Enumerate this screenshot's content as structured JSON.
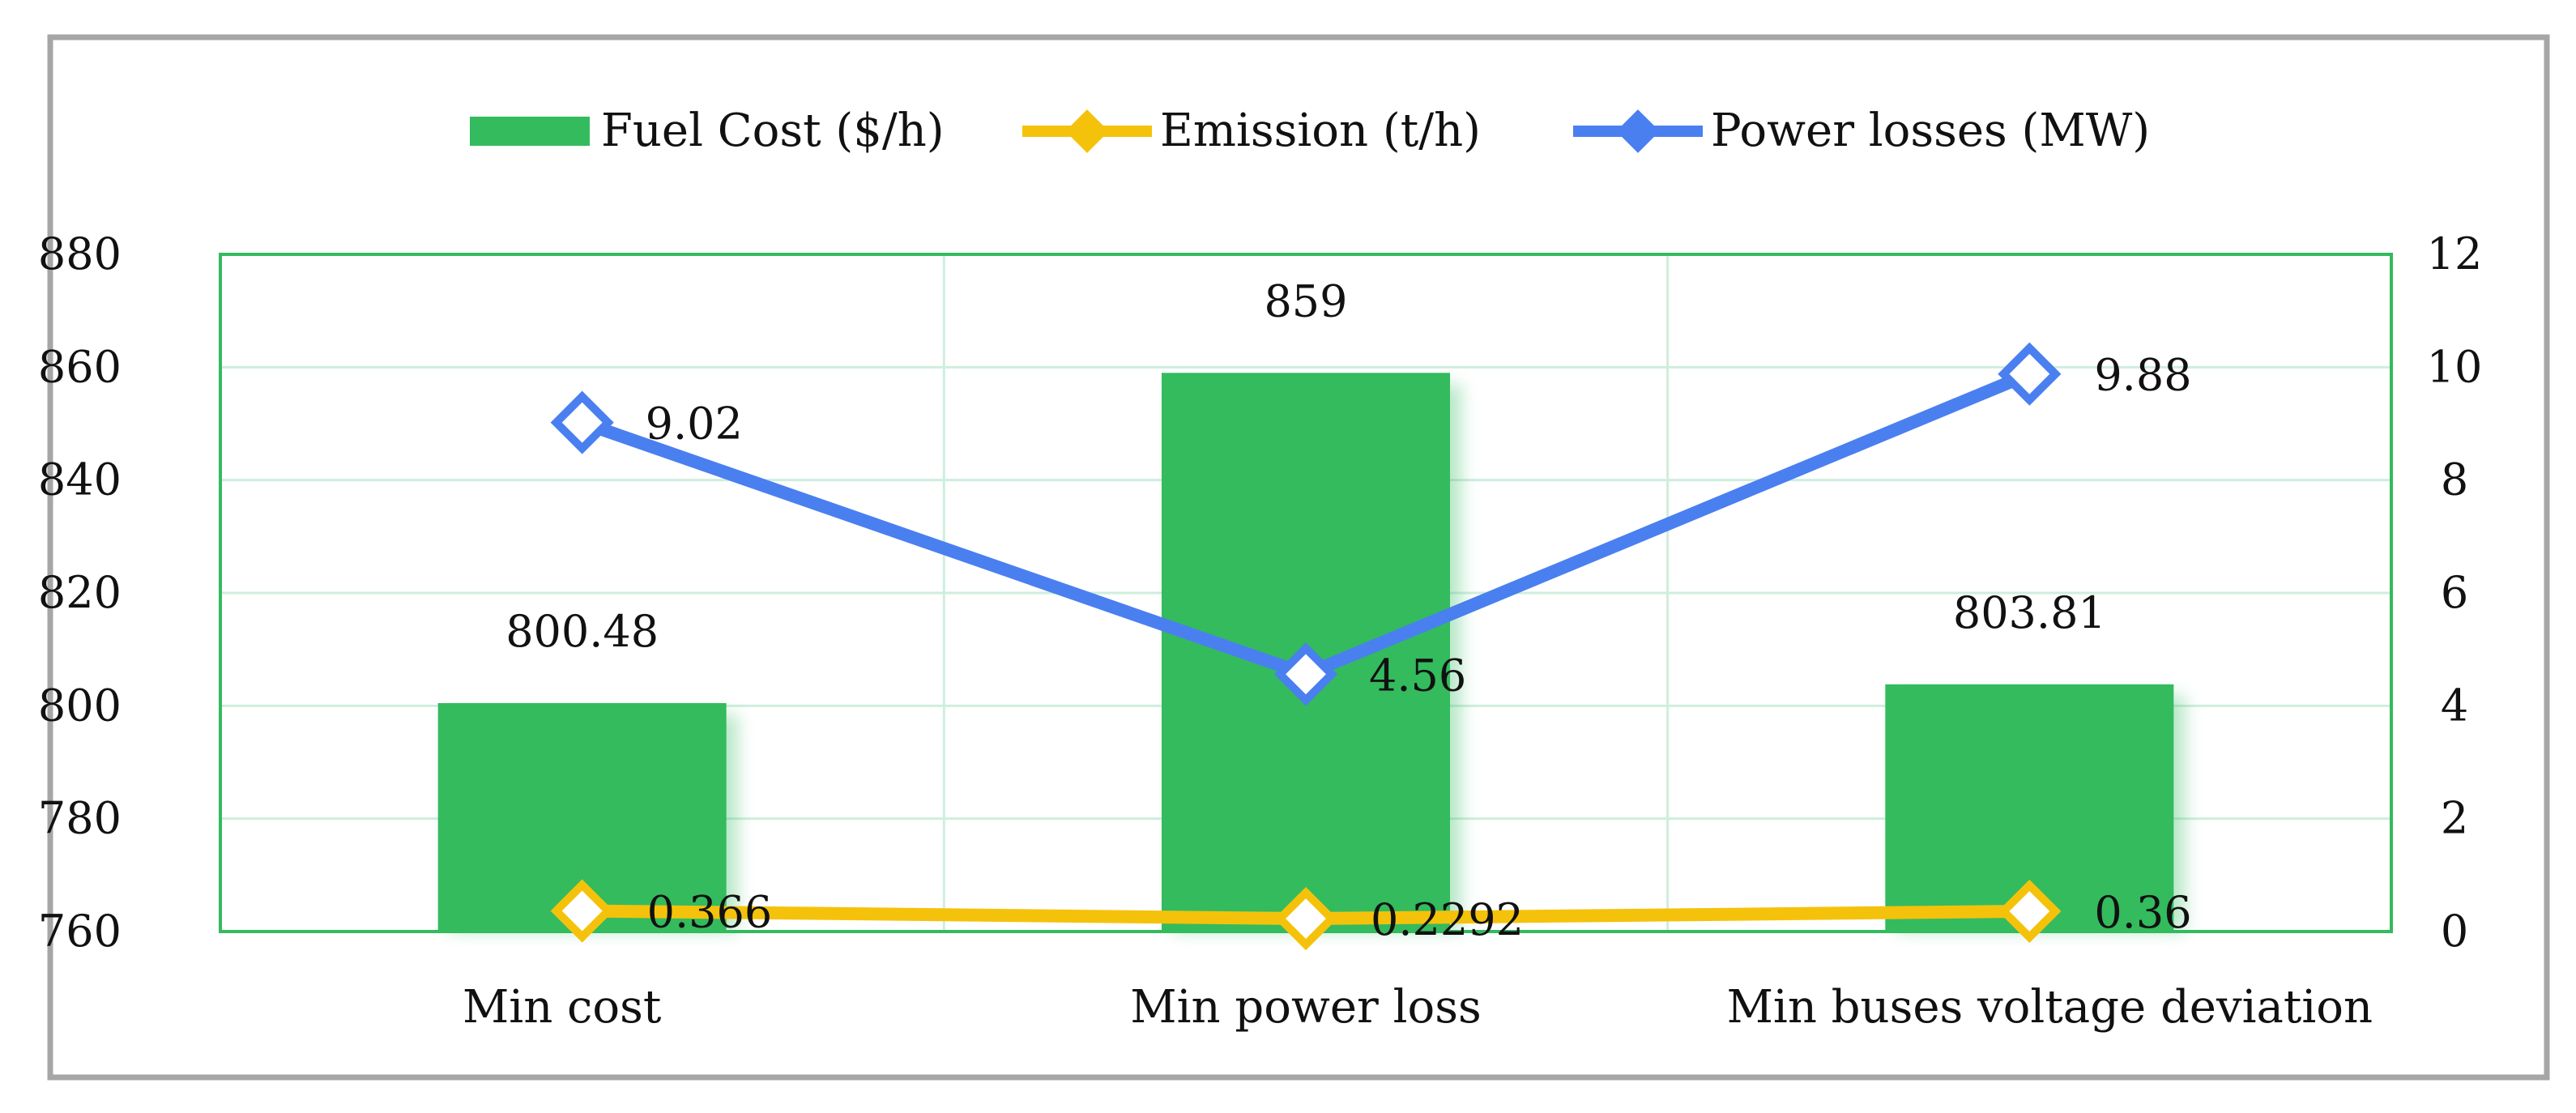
{
  "chart_data": {
    "type": "bar",
    "categories": [
      "Min cost",
      "Min power loss",
      "Min buses voltage deviation"
    ],
    "series": [
      {
        "name": "Fuel Cost ($/h)",
        "type": "bar",
        "axis": "left",
        "values": [
          800.48,
          859,
          803.81
        ],
        "labels": [
          "800.48",
          "859",
          "803.81"
        ],
        "color": "#33bb5e"
      },
      {
        "name": "Emission (t/h)",
        "type": "line",
        "axis": "right",
        "values": [
          0.366,
          0.2292,
          0.36
        ],
        "labels": [
          "0.366",
          "0.2292",
          "0.36"
        ],
        "color": "#f5c20b"
      },
      {
        "name": "Power losses (MW)",
        "type": "line",
        "axis": "right",
        "values": [
          9.02,
          4.56,
          9.88
        ],
        "labels": [
          "9.02",
          "4.56",
          "9.88"
        ],
        "color": "#4a7ff0"
      }
    ],
    "y_left": {
      "min": 760,
      "max": 880,
      "ticks": [
        760,
        780,
        800,
        820,
        840,
        860,
        880
      ]
    },
    "y_right": {
      "min": 0,
      "max": 12,
      "ticks": [
        0,
        2,
        4,
        6,
        8,
        10,
        12
      ]
    },
    "grid": true,
    "legend": "top-center"
  }
}
